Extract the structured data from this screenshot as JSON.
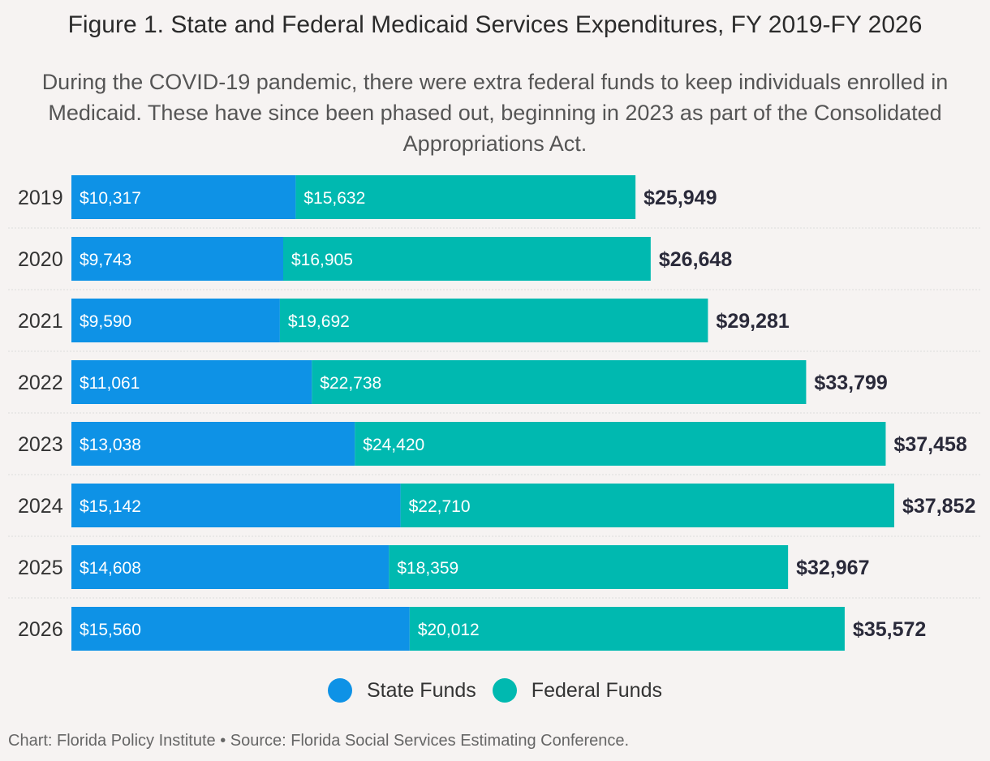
{
  "chart_data": {
    "type": "bar",
    "orientation": "horizontal",
    "stacked": true,
    "title": "Figure 1. State and Federal Medicaid Services Expenditures, FY 2019-FY 2026",
    "subtitle": "During the COVID-19 pandemic, there were extra federal funds to keep individuals enrolled in Medicaid. These have since been phased out, beginning in 2023 as part of the Consolidated Appropriations Act.",
    "categories": [
      "2019",
      "2020",
      "2021",
      "2022",
      "2023",
      "2024",
      "2025",
      "2026"
    ],
    "series": [
      {
        "name": "State Funds",
        "color": "#0e92e6",
        "values": [
          10317,
          9743,
          9590,
          11061,
          13038,
          15142,
          14608,
          15560
        ],
        "labels": [
          "$10,317",
          "$9,743",
          "$9,590",
          "$11,061",
          "$13,038",
          "$15,142",
          "$14,608",
          "$15,560"
        ]
      },
      {
        "name": "Federal Funds",
        "color": "#00b9b0",
        "values": [
          15632,
          16905,
          19692,
          22738,
          24420,
          22710,
          18359,
          20012
        ],
        "labels": [
          "$15,632",
          "$16,905",
          "$19,692",
          "$22,738",
          "$24,420",
          "$22,710",
          "$18,359",
          "$20,012"
        ]
      }
    ],
    "totals": [
      25949,
      26648,
      29281,
      33799,
      37458,
      37852,
      32967,
      35572
    ],
    "total_labels": [
      "$25,949",
      "$26,648",
      "$29,281",
      "$33,799",
      "$37,458",
      "$37,852",
      "$32,967",
      "$35,572"
    ],
    "xlim": [
      0,
      37852
    ],
    "legend_position": "bottom-center"
  },
  "footer": "Chart: Florida Policy Institute • Source: Florida Social Services Estimating Conference."
}
